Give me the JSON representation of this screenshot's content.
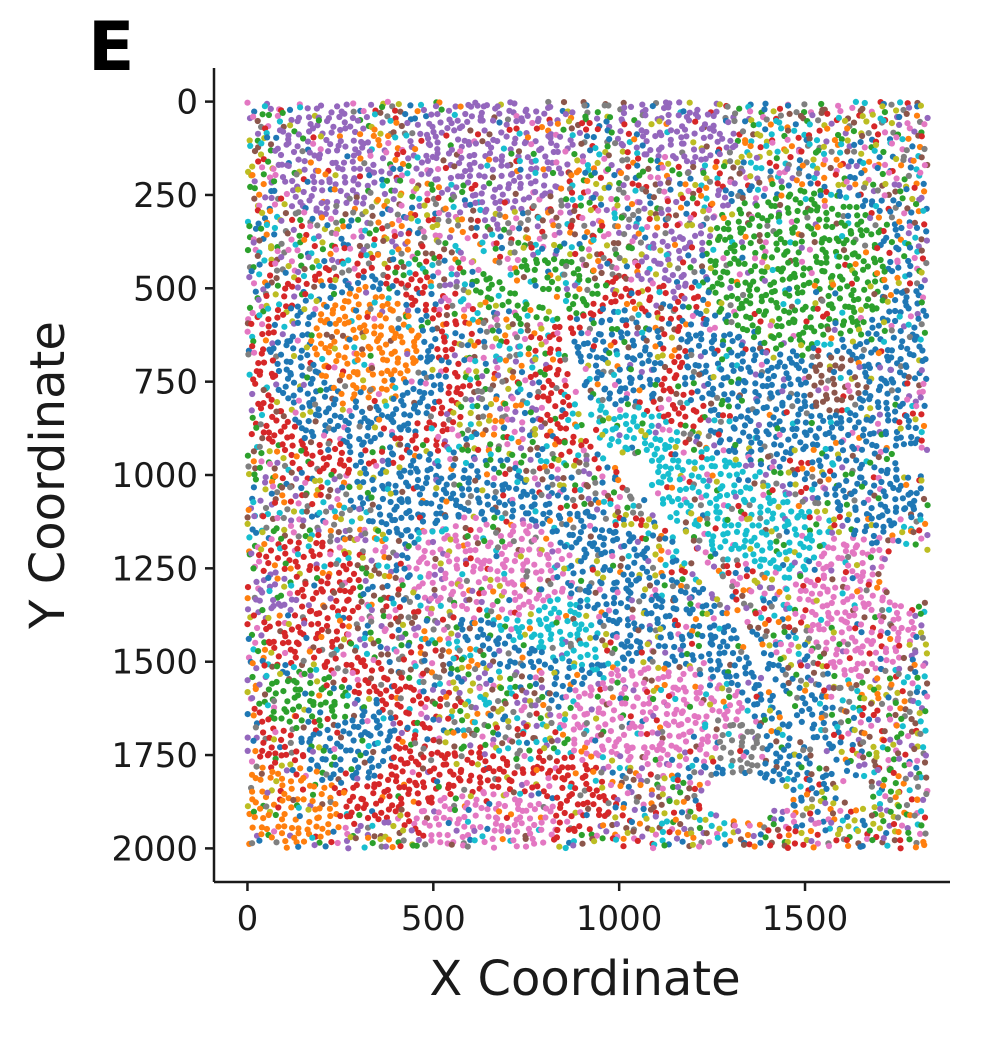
{
  "panel_label": "E",
  "chart_data": {
    "type": "scatter",
    "title": "",
    "xlabel": "X Coordinate",
    "ylabel": "Y Coordinate",
    "xlim": [
      -90,
      1890
    ],
    "ylim": [
      2090,
      -90
    ],
    "y_inverted": true,
    "x_ticks": [
      0,
      500,
      1000,
      1500
    ],
    "x_tick_labels": [
      "0",
      "500",
      "1000",
      "1500"
    ],
    "y_ticks": [
      0,
      250,
      500,
      750,
      1000,
      1250,
      1500,
      1750,
      2000
    ],
    "y_tick_labels": [
      "0",
      "250",
      "500",
      "750",
      "1000",
      "1250",
      "1500",
      "1750",
      "2000"
    ],
    "data_extent": {
      "x": [
        0,
        1830
      ],
      "y": [
        0,
        2000
      ]
    },
    "grid": false,
    "legend": "none",
    "point_colors": [
      "#1f77b4",
      "#ff7f0e",
      "#2ca02c",
      "#d62728",
      "#9467bd",
      "#8c564b",
      "#e377c2",
      "#7f7f7f",
      "#bcbd22",
      "#17becf"
    ],
    "regions": [
      {
        "cluster": 4,
        "shape": "ellipse",
        "cx": 220,
        "cy": 150,
        "rx": 150,
        "ry": 150
      },
      {
        "cluster": 4,
        "shape": "ellipse",
        "cx": 660,
        "cy": 120,
        "rx": 230,
        "ry": 170
      },
      {
        "cluster": 4,
        "shape": "ellipse",
        "cx": 1160,
        "cy": 70,
        "rx": 160,
        "ry": 100
      },
      {
        "cluster": 4,
        "shape": "ellipse",
        "cx": 1180,
        "cy": 470,
        "rx": 130,
        "ry": 140
      },
      {
        "cluster": 3,
        "shape": "ellipse",
        "cx": 290,
        "cy": 730,
        "rx": 300,
        "ry": 290
      },
      {
        "cluster": 0,
        "shape": "ellipse",
        "cx": 300,
        "cy": 700,
        "rx": 230,
        "ry": 230
      },
      {
        "cluster": 1,
        "shape": "ellipse",
        "cx": 320,
        "cy": 650,
        "rx": 150,
        "ry": 150
      },
      {
        "cluster": 3,
        "shape": "ellipse",
        "cx": 1010,
        "cy": 740,
        "rx": 240,
        "ry": 260
      },
      {
        "cluster": 0,
        "shape": "ellipse",
        "cx": 1000,
        "cy": 700,
        "rx": 130,
        "ry": 150
      },
      {
        "cluster": 2,
        "shape": "ellipse",
        "cx": 780,
        "cy": 500,
        "rx": 170,
        "ry": 90
      },
      {
        "cluster": 0,
        "shape": "ellipse",
        "cx": 1500,
        "cy": 600,
        "rx": 330,
        "ry": 400
      },
      {
        "cluster": 2,
        "shape": "ellipse",
        "cx": 1480,
        "cy": 450,
        "rx": 250,
        "ry": 220
      },
      {
        "cluster": 5,
        "shape": "ellipse",
        "cx": 1580,
        "cy": 760,
        "rx": 80,
        "ry": 80
      },
      {
        "cluster": 0,
        "shape": "ellipse",
        "cx": 950,
        "cy": 1400,
        "rx": 760,
        "ry": 240,
        "rot": 33
      },
      {
        "cluster": 9,
        "shape": "ellipse",
        "cx": 1250,
        "cy": 1050,
        "rx": 450,
        "ry": 110,
        "rot": 33
      },
      {
        "cluster": 9,
        "shape": "ellipse",
        "cx": 720,
        "cy": 1330,
        "rx": 320,
        "ry": 90,
        "rot": 33
      },
      {
        "cluster": 6,
        "shape": "ellipse",
        "cx": 650,
        "cy": 1250,
        "rx": 220,
        "ry": 140
      },
      {
        "cluster": 6,
        "shape": "ellipse",
        "cx": 1100,
        "cy": 1650,
        "rx": 250,
        "ry": 140
      },
      {
        "cluster": 6,
        "shape": "ellipse",
        "cx": 1650,
        "cy": 1350,
        "rx": 160,
        "ry": 200
      },
      {
        "cluster": 3,
        "shape": "ellipse",
        "cx": 140,
        "cy": 1330,
        "rx": 160,
        "ry": 160
      },
      {
        "cluster": 4,
        "shape": "ellipse",
        "cx": 70,
        "cy": 1320,
        "rx": 60,
        "ry": 70
      },
      {
        "cluster": 3,
        "shape": "ellipse",
        "cx": 270,
        "cy": 1710,
        "rx": 240,
        "ry": 230
      },
      {
        "cluster": 0,
        "shape": "ellipse",
        "cx": 270,
        "cy": 1710,
        "rx": 130,
        "ry": 120
      },
      {
        "cluster": 3,
        "shape": "ellipse",
        "cx": 680,
        "cy": 1870,
        "rx": 300,
        "ry": 140
      },
      {
        "cluster": 6,
        "shape": "ellipse",
        "cx": 650,
        "cy": 1930,
        "rx": 200,
        "ry": 80
      },
      {
        "cluster": 2,
        "shape": "ellipse",
        "cx": 150,
        "cy": 1600,
        "rx": 120,
        "ry": 80
      },
      {
        "cluster": 1,
        "shape": "ellipse",
        "cx": 100,
        "cy": 1900,
        "rx": 150,
        "ry": 120
      },
      {
        "cluster": 7,
        "shape": "ellipse",
        "cx": 1330,
        "cy": 1730,
        "rx": 70,
        "ry": 70
      },
      {
        "cluster": 0,
        "shape": "ellipse",
        "cx": 1700,
        "cy": 1000,
        "rx": 130,
        "ry": 180
      }
    ],
    "empty_areas": [
      {
        "cx": 1330,
        "cy": 1860,
        "rx": 110,
        "ry": 60
      },
      {
        "cx": 1780,
        "cy": 1270,
        "rx": 70,
        "ry": 80
      },
      {
        "cx": 1790,
        "cy": 960,
        "rx": 40,
        "ry": 40
      },
      {
        "cx": 1640,
        "cy": 1850,
        "rx": 40,
        "ry": 40
      },
      {
        "cx": 1050,
        "cy": 1000,
        "rx": 45,
        "ry": 50
      }
    ],
    "empty_channels": [
      [
        [
          560,
          360
        ],
        [
          700,
          480
        ],
        [
          850,
          560
        ],
        [
          880,
          720
        ],
        [
          930,
          900
        ],
        [
          1050,
          1000
        ],
        [
          1150,
          1150
        ],
        [
          1300,
          1350
        ],
        [
          1400,
          1550
        ],
        [
          1500,
          1700
        ],
        [
          1600,
          1800
        ]
      ]
    ]
  }
}
